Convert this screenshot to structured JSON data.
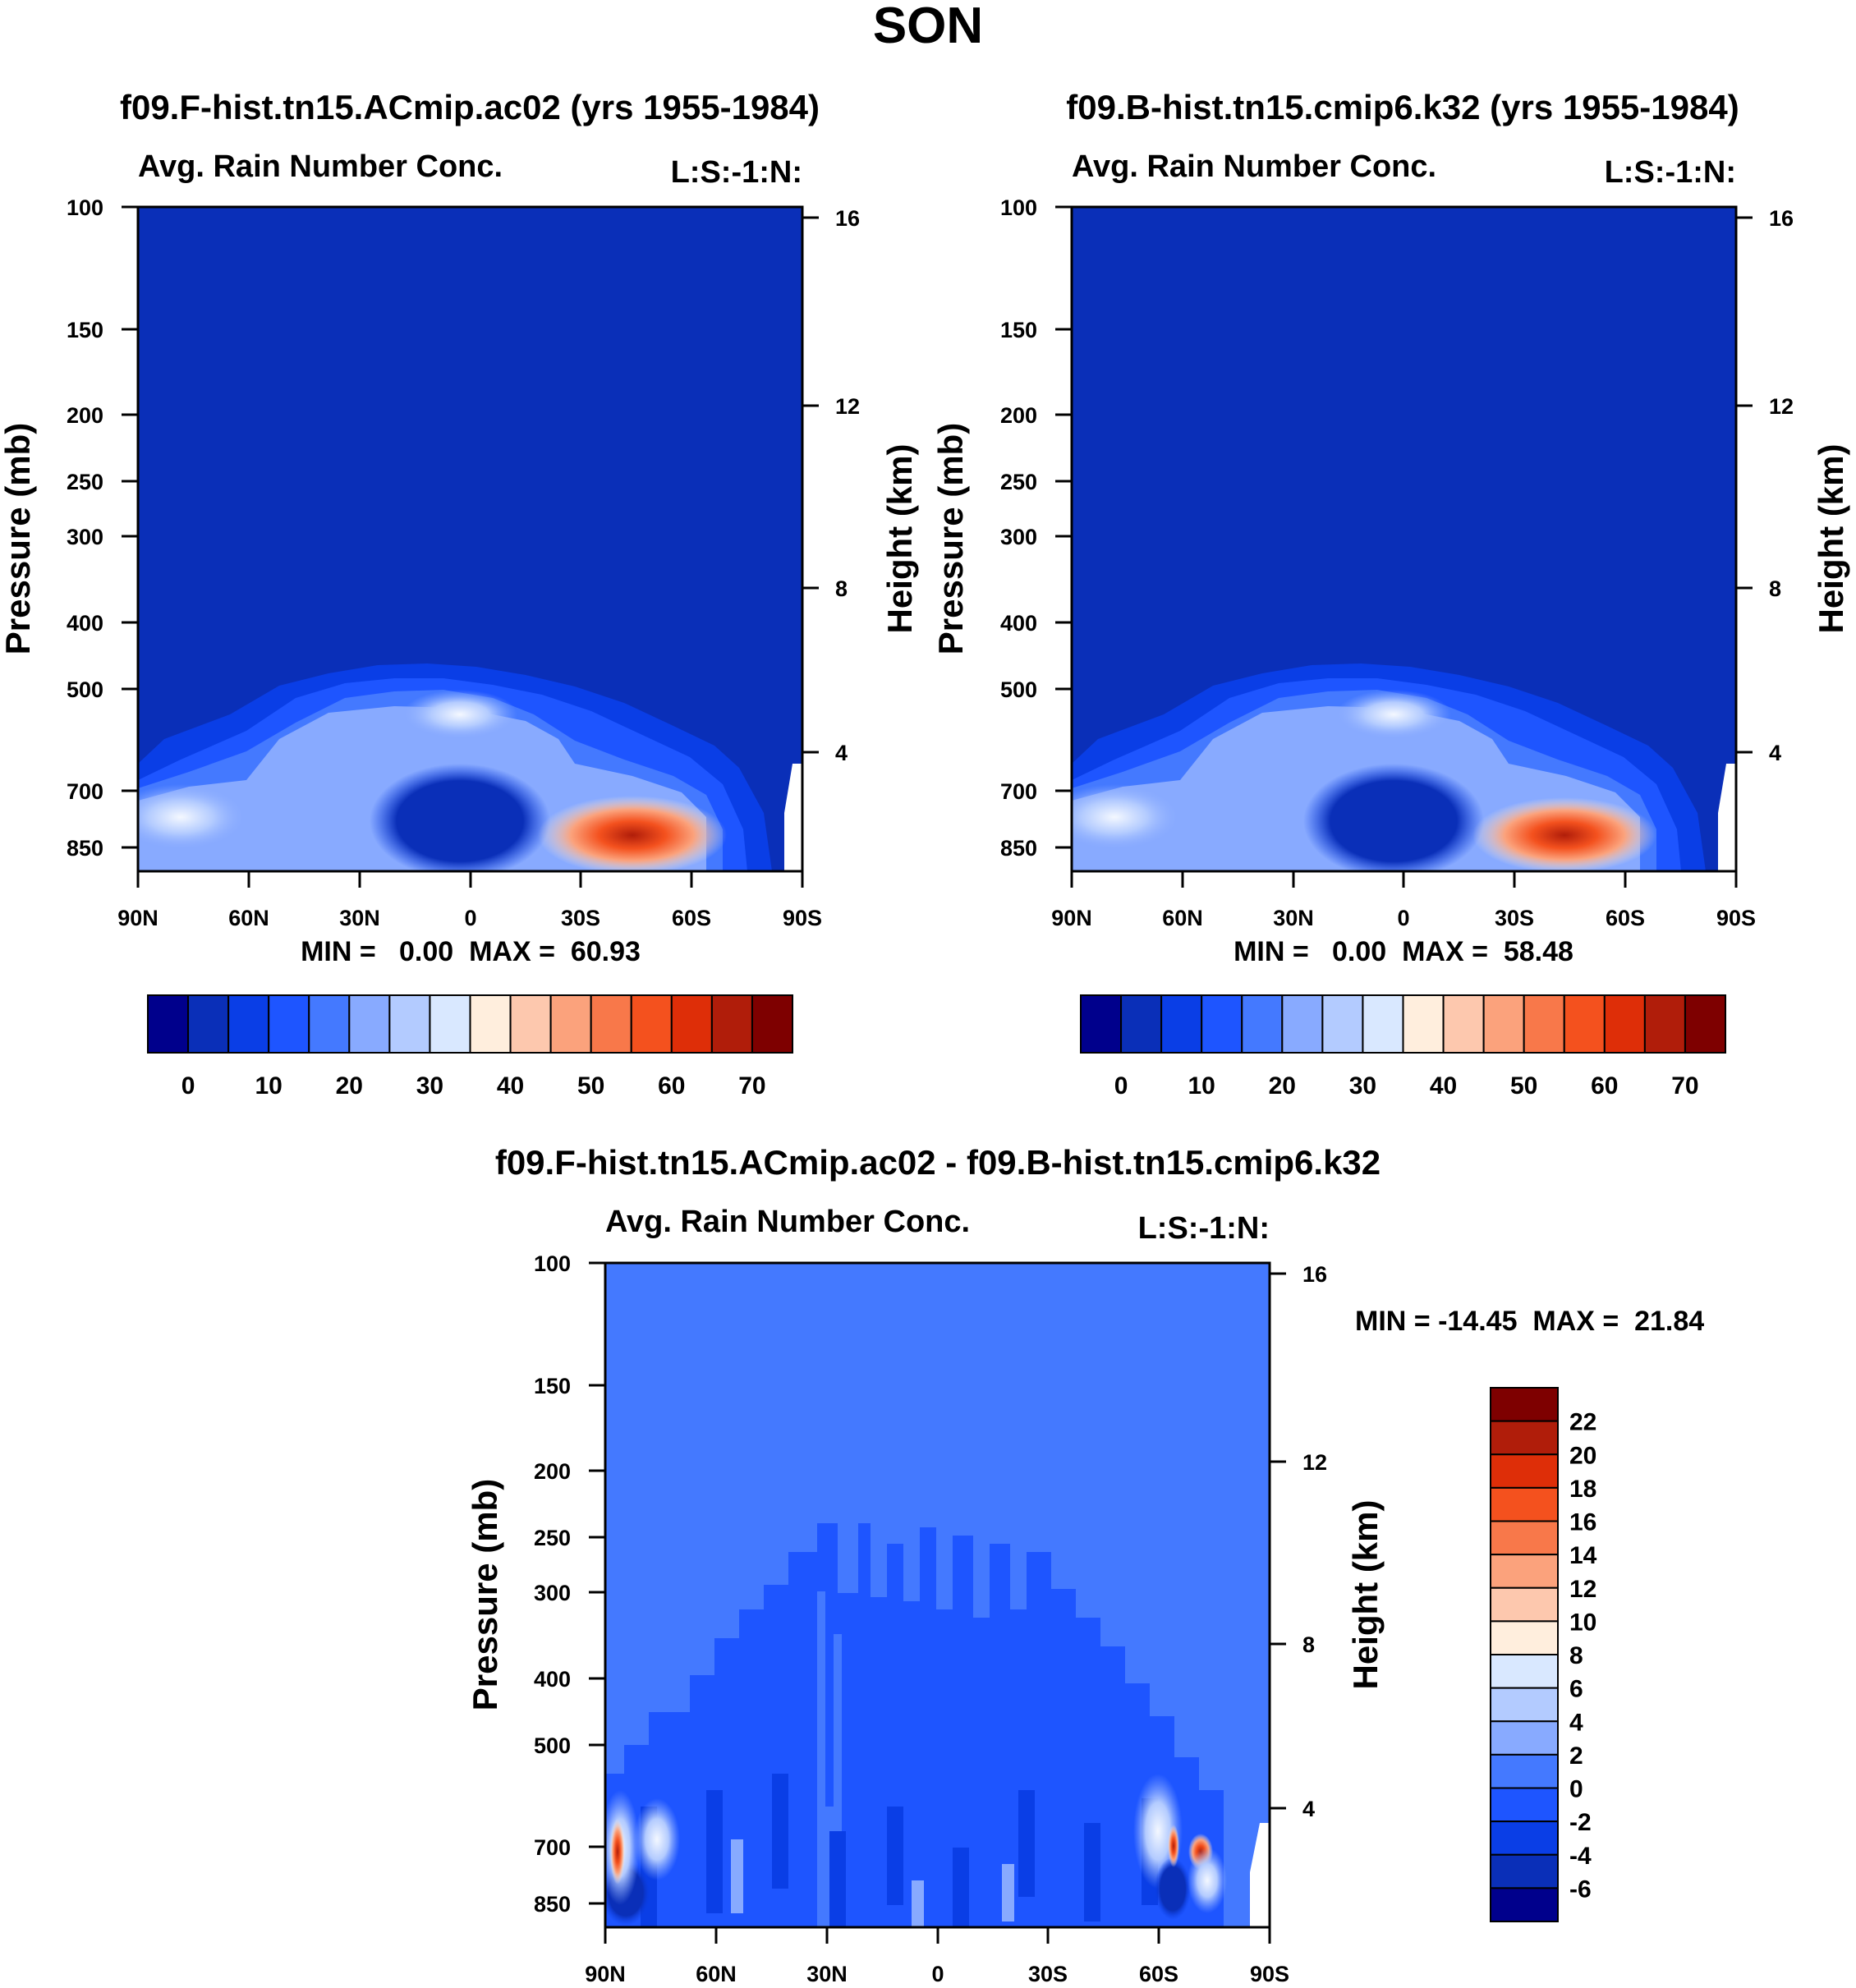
{
  "figure": {
    "title": "SON",
    "colors": {
      "background_field_top": "#0a2fb8",
      "background_field_diff": "#4479ff",
      "frame": "#000000"
    }
  },
  "chart_data": [
    {
      "type": "heatmap",
      "title": "f09.F-hist.tn15.ACmip.ac02 (yrs 1955-1984)",
      "subtitle_left": "Avg. Rain Number Conc.",
      "subtitle_right": "L:S:-1:N:",
      "ylabel": "Pressure (mb)",
      "ylabel_right": "Height (km)",
      "xticks": [
        "90N",
        "60N",
        "30N",
        "0",
        "30S",
        "60S",
        "90S"
      ],
      "yticks": [
        100,
        150,
        200,
        250,
        300,
        400,
        500,
        700,
        850
      ],
      "yticks_right": [
        16,
        12,
        8,
        4
      ],
      "ylim": [
        100,
        950
      ],
      "stats": "MIN =   0.00  MAX =  60.93",
      "min": 0.0,
      "max": 60.93,
      "colorbar": {
        "orientation": "horizontal",
        "labels": [
          "0",
          "10",
          "20",
          "30",
          "40",
          "50",
          "60",
          "70"
        ],
        "colors": [
          "#00008c",
          "#0a2fb8",
          "#0a3ee6",
          "#1e55ff",
          "#4479ff",
          "#88aaff",
          "#b3cbff",
          "#d9e8ff",
          "#ffeedd",
          "#fdc8ae",
          "#fba27c",
          "#f8784a",
          "#f4511e",
          "#de2e08",
          "#b01d0a",
          "#7e0000"
        ]
      }
    },
    {
      "type": "heatmap",
      "title": "f09.B-hist.tn15.cmip6.k32 (yrs 1955-1984)",
      "subtitle_left": "Avg. Rain Number Conc.",
      "subtitle_right": "L:S:-1:N:",
      "ylabel": "Pressure (mb)",
      "ylabel_right": "Height (km)",
      "xticks": [
        "90N",
        "60N",
        "30N",
        "0",
        "30S",
        "60S",
        "90S"
      ],
      "yticks": [
        100,
        150,
        200,
        250,
        300,
        400,
        500,
        700,
        850
      ],
      "yticks_right": [
        16,
        12,
        8,
        4
      ],
      "ylim": [
        100,
        950
      ],
      "stats": "MIN =   0.00  MAX =  58.48",
      "min": 0.0,
      "max": 58.48,
      "colorbar": {
        "orientation": "horizontal",
        "labels": [
          "0",
          "10",
          "20",
          "30",
          "40",
          "50",
          "60",
          "70"
        ],
        "colors": [
          "#00008c",
          "#0a2fb8",
          "#0a3ee6",
          "#1e55ff",
          "#4479ff",
          "#88aaff",
          "#b3cbff",
          "#d9e8ff",
          "#ffeedd",
          "#fdc8ae",
          "#fba27c",
          "#f8784a",
          "#f4511e",
          "#de2e08",
          "#b01d0a",
          "#7e0000"
        ]
      }
    },
    {
      "type": "heatmap",
      "title": "f09.F-hist.tn15.ACmip.ac02 - f09.B-hist.tn15.cmip6.k32",
      "subtitle_left": "Avg. Rain Number Conc.",
      "subtitle_right": "L:S:-1:N:",
      "ylabel": "Pressure (mb)",
      "ylabel_right": "Height (km)",
      "xticks": [
        "90N",
        "60N",
        "30N",
        "0",
        "30S",
        "60S",
        "90S"
      ],
      "yticks": [
        100,
        150,
        200,
        250,
        300,
        400,
        500,
        700,
        850
      ],
      "yticks_right": [
        16,
        12,
        8,
        4
      ],
      "ylim": [
        100,
        950
      ],
      "stats": "MIN = -14.45  MAX =  21.84",
      "min": -14.45,
      "max": 21.84,
      "colorbar": {
        "orientation": "vertical",
        "labels": [
          "22",
          "20",
          "18",
          "16",
          "14",
          "12",
          "10",
          "8",
          "6",
          "4",
          "2",
          "0",
          "-2",
          "-4",
          "-6"
        ],
        "colors": [
          "#7e0000",
          "#b01d0a",
          "#de2e08",
          "#f4511e",
          "#f8784a",
          "#fba27c",
          "#fdc8ae",
          "#ffeedd",
          "#d9e8ff",
          "#b3cbff",
          "#88aaff",
          "#4479ff",
          "#1e55ff",
          "#0a3ee6",
          "#0a2fb8",
          "#00008c"
        ]
      }
    }
  ]
}
